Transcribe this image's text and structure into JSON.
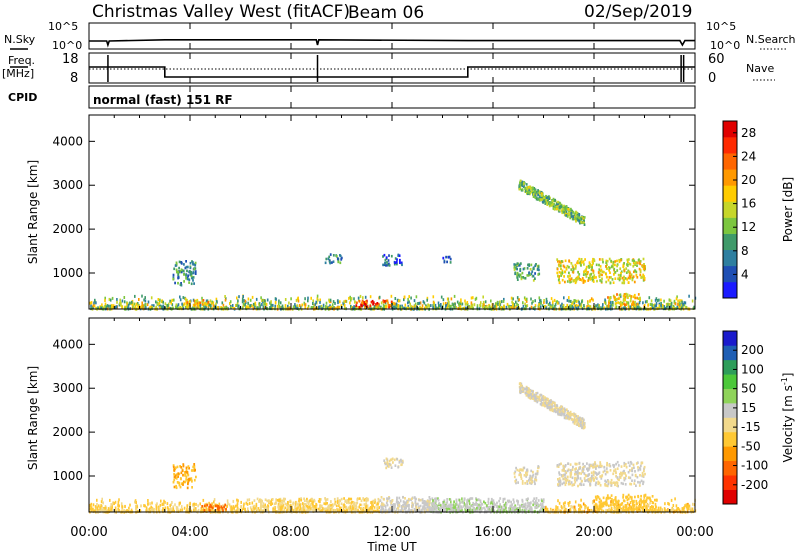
{
  "header": {
    "title": "Christmas Valley West (fitACF)",
    "beam": "Beam 06",
    "date": "02/Sep/2019",
    "program": "normal (fast) 151 RF"
  },
  "left_labels": {
    "nsky": "N.Sky",
    "freq": "Freq.",
    "freq_unit": "[MHz]",
    "cpid": "CPID"
  },
  "right_labels": {
    "nsearch": "N.Search",
    "nave": "Nave"
  },
  "colors": {
    "line": "#000000",
    "background": "#ffffff"
  },
  "chart_data": [
    {
      "type": "line",
      "panel": "noise",
      "x_ticks": [
        "00:00",
        "04:00",
        "08:00",
        "12:00",
        "16:00",
        "20:00",
        "00:00"
      ],
      "y_ticks_left": [
        "10^5",
        "10^0"
      ],
      "y_ticks_right": [
        "10^5",
        "10^0"
      ],
      "series": [
        {
          "key": "nsky",
          "x": [
            0,
            0.7,
            0.75,
            0.8,
            3,
            9,
            9.05,
            9.1,
            15,
            23.4,
            23.5,
            23.6,
            24
          ],
          "y": [
            0.5,
            0.5,
            -0.5,
            0.5,
            0.8,
            0.8,
            -0.5,
            0.8,
            0.6,
            0.6,
            -0.5,
            0.6,
            0.6
          ]
        }
      ]
    },
    {
      "type": "line",
      "panel": "frequency",
      "y_ticks_left": [
        "18",
        "8"
      ],
      "y_ticks_right": [
        "60",
        "0"
      ],
      "series": [
        {
          "key": "freq",
          "x": [
            0,
            3,
            3,
            15,
            15,
            24
          ],
          "y": [
            14.5,
            14.5,
            9.5,
            9.5,
            14.5,
            14.5
          ]
        },
        {
          "key": "nave",
          "x": [
            0,
            24
          ],
          "y": [
            30,
            30
          ]
        }
      ]
    },
    {
      "type": "heatmap",
      "panel": "power",
      "ylabel": "Slant Range [km]",
      "y_ticks": [
        "1000",
        "2000",
        "3000",
        "4000"
      ],
      "ylim": [
        180,
        4600
      ],
      "xlim": [
        0,
        24
      ],
      "colorbar": {
        "label": "Power [dB]",
        "ticks": [
          "4",
          "8",
          "12",
          "16",
          "20",
          "24",
          "28"
        ],
        "range": [
          0,
          30
        ],
        "colors": [
          "#1b1bff",
          "#1f4fb4",
          "#2e7fa0",
          "#3f9a6a",
          "#7cc63f",
          "#c6d62a",
          "#ffcc00",
          "#ff9900",
          "#ff6600",
          "#ff2a00",
          "#e00000"
        ]
      },
      "patches": [
        {
          "x": [
            3.3,
            4.2
          ],
          "y": [
            750,
            1300
          ],
          "level": 8
        },
        {
          "x": [
            9.3,
            10.0
          ],
          "y": [
            1250,
            1450
          ],
          "level": 8
        },
        {
          "x": [
            11.6,
            12.4
          ],
          "y": [
            1200,
            1450
          ],
          "level": 6
        },
        {
          "x": [
            13.9,
            14.3
          ],
          "y": [
            1250,
            1400
          ],
          "level": 6
        },
        {
          "x": [
            16.8,
            17.8
          ],
          "y": [
            850,
            1250
          ],
          "level": 10
        },
        {
          "x": [
            17.0,
            19.6
          ],
          "y": [
            2200,
            3050
          ],
          "level": 12
        },
        {
          "x": [
            18.5,
            22.0
          ],
          "y": [
            800,
            1350
          ],
          "level": 16
        },
        {
          "x": [
            3.8,
            4.8
          ],
          "y": [
            280,
            420
          ],
          "level": 20
        },
        {
          "x": [
            10.5,
            12.0
          ],
          "y": [
            250,
            400
          ],
          "level": 26
        },
        {
          "x": [
            20.5,
            21.8
          ],
          "y": [
            300,
            550
          ],
          "level": 18
        }
      ]
    },
    {
      "type": "heatmap",
      "panel": "velocity",
      "xlabel": "Time UT",
      "ylabel": "Slant Range [km]",
      "y_ticks": [
        "1000",
        "2000",
        "3000",
        "4000"
      ],
      "ylim": [
        180,
        4600
      ],
      "xlim": [
        0,
        24
      ],
      "colorbar": {
        "label": "Velocity [m s",
        "label_sup": "-1",
        "label_end": "]",
        "ticks": [
          "-200",
          "-100",
          "-50",
          "-15",
          "15",
          "50",
          "100",
          "200"
        ],
        "range": [
          -250,
          250
        ],
        "colors": [
          "#e00000",
          "#ff3300",
          "#ff6600",
          "#ff9900",
          "#ffc833",
          "#f2d98c",
          "#c8c8c8",
          "#8fd35a",
          "#4cc83a",
          "#2e9d5a",
          "#1f5fb4",
          "#1b1bcc"
        ]
      },
      "patches": [
        {
          "x": [
            3.3,
            4.2
          ],
          "y": [
            750,
            1300
          ],
          "level": -80
        },
        {
          "x": [
            4.4,
            5.4
          ],
          "y": [
            230,
            380
          ],
          "level": -150
        },
        {
          "x": [
            11.6,
            12.4
          ],
          "y": [
            1200,
            1450
          ],
          "level": 0
        },
        {
          "x": [
            16.8,
            17.8
          ],
          "y": [
            850,
            1250
          ],
          "level": 0
        },
        {
          "x": [
            17.0,
            19.6
          ],
          "y": [
            2200,
            3050
          ],
          "level": 0
        },
        {
          "x": [
            18.5,
            22.0
          ],
          "y": [
            800,
            1350
          ],
          "level": 0
        },
        {
          "x": [
            6.5,
            11.5
          ],
          "y": [
            230,
            520
          ],
          "level": -40
        },
        {
          "x": [
            11.5,
            13.5
          ],
          "y": [
            250,
            550
          ],
          "level": 5
        },
        {
          "x": [
            13.5,
            18.0
          ],
          "y": [
            240,
            520
          ],
          "level": 30
        },
        {
          "x": [
            20.0,
            22.5
          ],
          "y": [
            250,
            600
          ],
          "level": -60
        }
      ]
    }
  ]
}
